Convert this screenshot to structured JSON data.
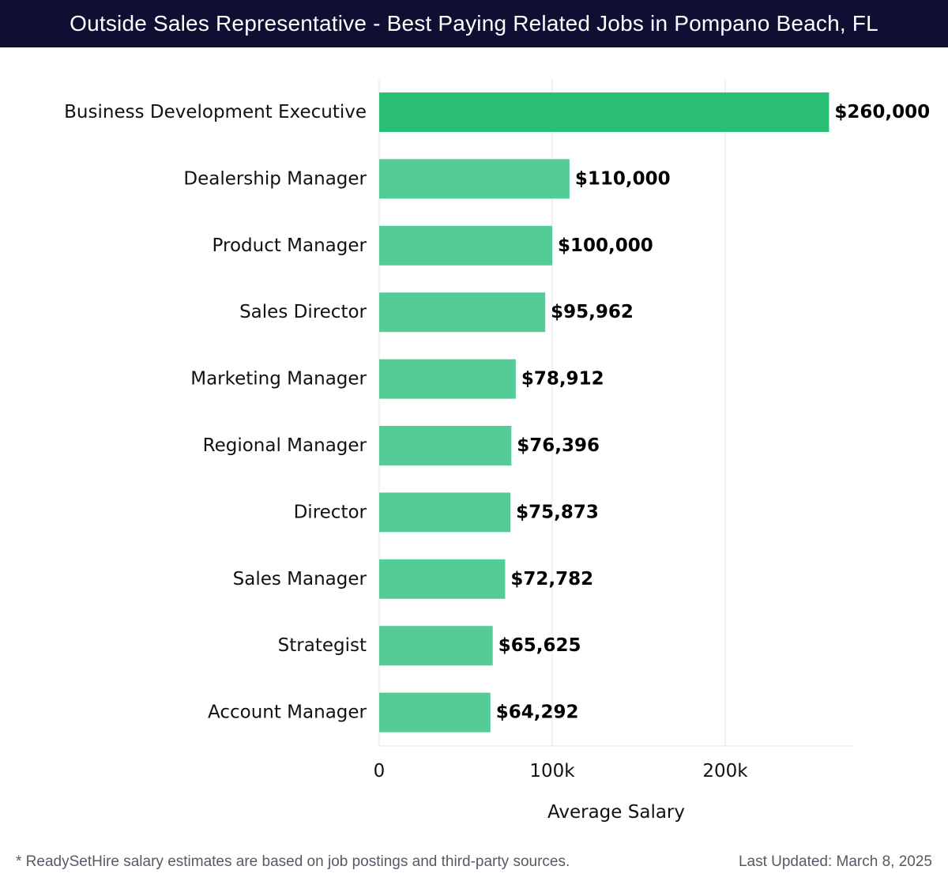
{
  "header": {
    "title": "Outside Sales Representative - Best Paying Related Jobs in Pompano Beach, FL"
  },
  "chart_data": {
    "type": "bar",
    "orientation": "horizontal",
    "title": "Outside Sales Representative - Best Paying Related Jobs in Pompano Beach, FL",
    "xlabel": "Average Salary",
    "ylabel": "",
    "xlim": [
      0,
      275000
    ],
    "xticks": [
      0,
      100000,
      200000
    ],
    "xtick_labels": [
      "0",
      "100k",
      "200k"
    ],
    "grid": true,
    "categories": [
      "Business Development Executive",
      "Dealership Manager",
      "Product Manager",
      "Sales Director",
      "Marketing Manager",
      "Regional Manager",
      "Director",
      "Sales Manager",
      "Strategist",
      "Account Manager"
    ],
    "values": [
      260000,
      110000,
      100000,
      95962,
      78912,
      76396,
      75873,
      72782,
      65625,
      64292
    ],
    "value_labels": [
      "$260,000",
      "$110,000",
      "$100,000",
      "$95,962",
      "$78,912",
      "$76,396",
      "$75,873",
      "$72,782",
      "$65,625",
      "$64,292"
    ],
    "colors": {
      "highlight": "#2bbf76",
      "bar": "#55cc96",
      "grid": "#e3e3e3"
    }
  },
  "footer": {
    "note": "* ReadySetHire salary estimates are based on job postings and third-party sources.",
    "updated": "Last Updated: March 8, 2025"
  }
}
